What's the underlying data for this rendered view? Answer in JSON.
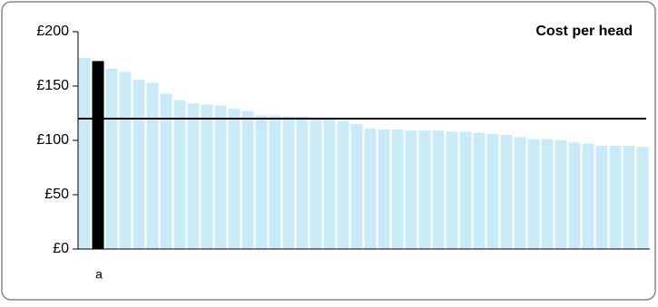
{
  "chart_data": {
    "type": "bar",
    "title": "Cost per head",
    "categories": [
      null,
      "a",
      null,
      null,
      null,
      null,
      null,
      null,
      null,
      null,
      null,
      null,
      null,
      null,
      null,
      null,
      null,
      null,
      null,
      null,
      null,
      null,
      null,
      null,
      null,
      null,
      null,
      null,
      null,
      null,
      null,
      null,
      null,
      null,
      null,
      null,
      null,
      null,
      null,
      null,
      null,
      null
    ],
    "values": [
      176,
      173,
      166,
      163,
      156,
      153,
      143,
      137,
      134,
      133,
      132,
      129,
      127,
      123,
      123,
      122,
      122,
      121,
      120,
      118,
      115,
      111,
      110,
      110,
      109,
      109,
      109,
      108,
      108,
      107,
      106,
      105,
      103,
      101,
      101,
      100,
      98,
      97,
      95,
      95,
      95,
      94
    ],
    "colors": [
      "#c9ebf7",
      "#000000",
      "#c9ebf7",
      "#c9ebf7",
      "#c9ebf7",
      "#c9ebf7",
      "#c9ebf7",
      "#c9ebf7",
      "#c9ebf7",
      "#c9ebf7",
      "#c9ebf7",
      "#c9ebf7",
      "#c9ebf7",
      "#c9ebf7",
      "#c9ebf7",
      "#c9ebf7",
      "#c9ebf7",
      "#c9ebf7",
      "#c9ebf7",
      "#c9ebf7",
      "#c9ebf7",
      "#c9ebf7",
      "#c9ebf7",
      "#c9ebf7",
      "#c9ebf7",
      "#c9ebf7",
      "#c9ebf7",
      "#c9ebf7",
      "#c9ebf7",
      "#c9ebf7",
      "#c9ebf7",
      "#c9ebf7",
      "#c9ebf7",
      "#c9ebf7",
      "#c9ebf7",
      "#c9ebf7",
      "#c9ebf7",
      "#c9ebf7",
      "#c9ebf7",
      "#c9ebf7",
      "#c9ebf7",
      "#c9ebf7"
    ],
    "reference_line": {
      "value": 120,
      "color": "#000000"
    },
    "ylim": [
      0,
      200
    ],
    "yticks": [
      {
        "value": 0,
        "label": "£0"
      },
      {
        "value": 50,
        "label": "£50"
      },
      {
        "value": 100,
        "label": "£100"
      },
      {
        "value": 150,
        "label": "£150"
      },
      {
        "value": 200,
        "label": "£200"
      }
    ],
    "grid": false
  }
}
